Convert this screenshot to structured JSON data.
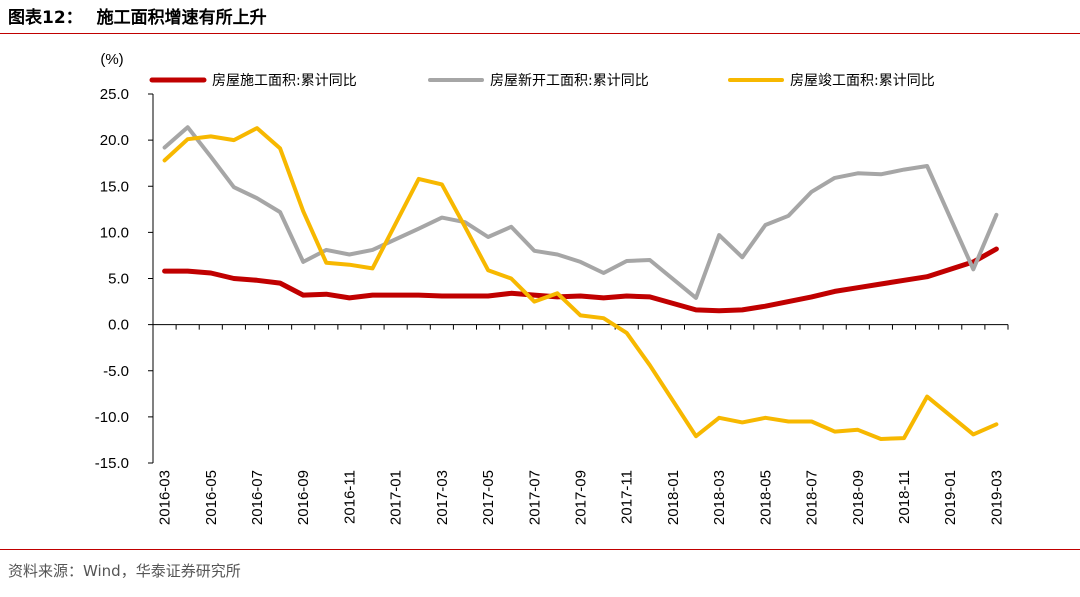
{
  "header": {
    "figure_label": "图表12：",
    "title": "施工面积增速有所上升"
  },
  "footer": {
    "source": "资料来源：Wind，华泰证券研究所"
  },
  "chart_data": {
    "type": "line",
    "unit_label": "(%)",
    "title": "施工面积增速有所上升",
    "ylim": [
      -15,
      25
    ],
    "yticks": [
      "25.0",
      "20.0",
      "15.0",
      "10.0",
      "5.0",
      "0.0",
      "-5.0",
      "-10.0",
      "-15.0"
    ],
    "ytick_values": [
      25,
      20,
      15,
      10,
      5,
      0,
      -5,
      -10,
      -15
    ],
    "legend_position": "top",
    "grid": false,
    "x": [
      "2016-03",
      "2016-04",
      "2016-05",
      "2016-06",
      "2016-07",
      "2016-08",
      "2016-09",
      "2016-10",
      "2016-11",
      "2016-12",
      "2017-01",
      "2017-02",
      "2017-03",
      "2017-04",
      "2017-05",
      "2017-06",
      "2017-07",
      "2017-08",
      "2017-09",
      "2017-10",
      "2017-11",
      "2017-12",
      "2018-01",
      "2018-02",
      "2018-03",
      "2018-04",
      "2018-05",
      "2018-06",
      "2018-07",
      "2018-08",
      "2018-09",
      "2018-10",
      "2018-11",
      "2018-12",
      "2019-01",
      "2019-02",
      "2019-03"
    ],
    "xtick_labels": [
      "2016-03",
      "2016-05",
      "2016-07",
      "2016-09",
      "2016-11",
      "2017-01",
      "2017-03",
      "2017-05",
      "2017-07",
      "2017-09",
      "2017-11",
      "2018-01",
      "2018-03",
      "2018-05",
      "2018-07",
      "2018-09",
      "2018-11",
      "2019-01",
      "2019-03"
    ],
    "series": [
      {
        "name": "房屋施工面积:累计同比",
        "color": "#c00000",
        "values": [
          5.8,
          5.8,
          5.6,
          5.0,
          4.8,
          4.5,
          3.2,
          3.3,
          2.9,
          3.2,
          null,
          3.2,
          3.1,
          3.1,
          3.1,
          3.4,
          3.2,
          3.0,
          3.1,
          2.9,
          3.1,
          3.0,
          null,
          1.6,
          1.5,
          1.6,
          2.0,
          2.5,
          3.0,
          3.6,
          4.0,
          4.4,
          4.8,
          5.2,
          null,
          6.8,
          8.2
        ]
      },
      {
        "name": "房屋新开工面积:累计同比",
        "color": "#a6a6a6",
        "values": [
          19.2,
          21.4,
          18.2,
          14.9,
          13.7,
          12.2,
          6.8,
          8.1,
          7.6,
          8.1,
          null,
          10.4,
          11.6,
          11.1,
          9.5,
          10.6,
          8.0,
          7.6,
          6.8,
          5.6,
          6.9,
          7.0,
          null,
          2.9,
          9.7,
          7.3,
          10.8,
          11.8,
          14.4,
          15.9,
          16.4,
          16.3,
          16.8,
          17.2,
          null,
          6.0,
          11.9
        ]
      },
      {
        "name": "房屋竣工面积:累计同比",
        "color": "#f7b800",
        "values": [
          17.8,
          20.1,
          20.4,
          20.0,
          21.3,
          19.1,
          12.3,
          6.7,
          6.5,
          6.1,
          null,
          15.8,
          15.2,
          10.6,
          5.9,
          5.0,
          2.5,
          3.4,
          1.0,
          0.7,
          -0.9,
          -4.4,
          null,
          -12.1,
          -10.1,
          -10.6,
          -10.1,
          -10.5,
          -10.5,
          -11.6,
          -11.4,
          -12.4,
          -12.3,
          -7.8,
          null,
          -11.9,
          -10.8
        ]
      }
    ]
  }
}
